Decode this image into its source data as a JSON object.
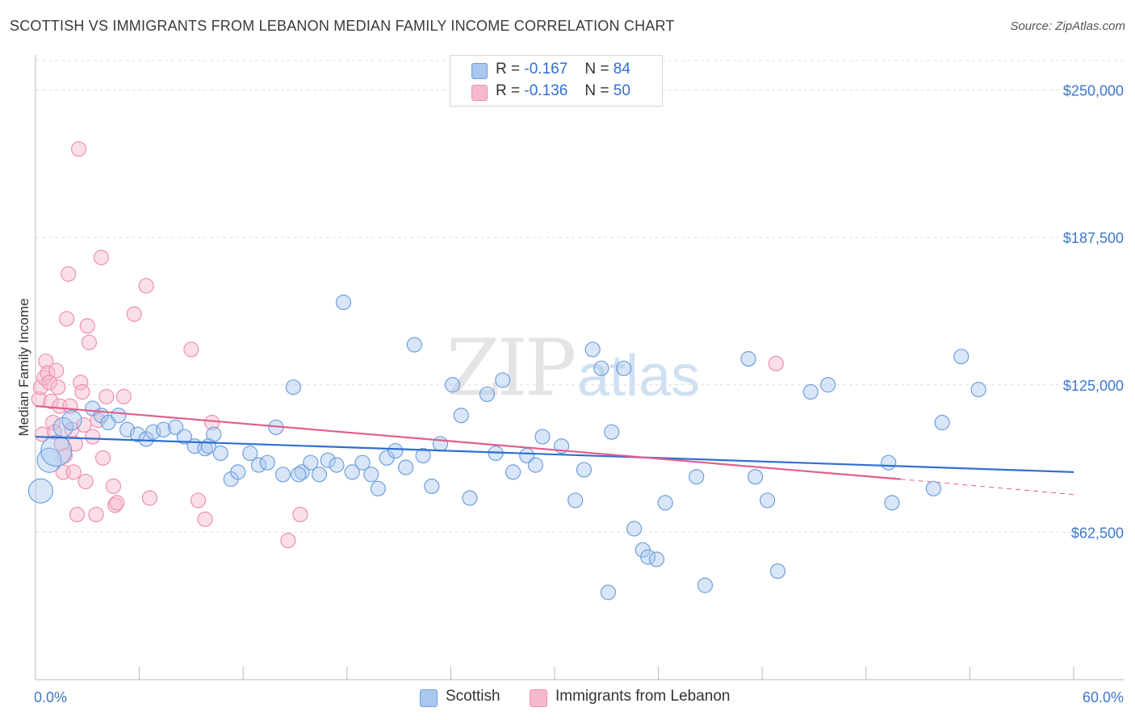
{
  "title": "SCOTTISH VS IMMIGRANTS FROM LEBANON MEDIAN FAMILY INCOME CORRELATION CHART",
  "source": "Source: ZipAtlas.com",
  "watermark": {
    "zip": "ZIP",
    "atlas": "atlas"
  },
  "colors": {
    "blue": "#2f6fd0",
    "blue_fill": "#a9c8ef",
    "blue_stroke": "#6f9fdc",
    "pink": "#e05f8a",
    "pink_fill": "#f6b9cc",
    "pink_stroke": "#ee8fae",
    "grid": "#dddddd",
    "axis_label": "#3f78c9"
  },
  "legend": {
    "r_label": "R =",
    "n_label": "N =",
    "blue_r": "-0.167",
    "blue_n": "84",
    "pink_r": "-0.136",
    "pink_n": "50"
  },
  "bottom_legend": {
    "blue": "Scottish",
    "pink": "Immigrants from Lebanon"
  },
  "chart_data": {
    "type": "scatter",
    "title": "SCOTTISH VS IMMIGRANTS FROM LEBANON MEDIAN FAMILY INCOME CORRELATION CHART",
    "xlabel": "",
    "ylabel": "Median Family Income",
    "xlim": [
      0,
      60
    ],
    "ylim": [
      0,
      262500
    ],
    "x_tick_labels": [
      "0.0%",
      "60.0%"
    ],
    "y_ticks": [
      62500,
      125000,
      187500,
      250000
    ],
    "y_tick_labels": [
      "$62,500",
      "$125,000",
      "$187,500",
      "$250,000"
    ],
    "series": [
      {
        "name": "Scottish",
        "r": -0.167,
        "n": 84,
        "trend": {
          "x": [
            0,
            60
          ],
          "y": [
            103000,
            88000
          ]
        },
        "points": [
          {
            "x": 0.3,
            "y": 80000,
            "s": 3
          },
          {
            "x": 0.8,
            "y": 93000,
            "s": 3
          },
          {
            "x": 1.2,
            "y": 97000,
            "s": 4
          },
          {
            "x": 1.6,
            "y": 107000,
            "s": 2
          },
          {
            "x": 2.1,
            "y": 110000,
            "s": 2
          },
          {
            "x": 3.3,
            "y": 115000,
            "s": 1
          },
          {
            "x": 3.8,
            "y": 112000,
            "s": 1
          },
          {
            "x": 4.2,
            "y": 109000,
            "s": 1
          },
          {
            "x": 4.8,
            "y": 112000,
            "s": 1
          },
          {
            "x": 5.3,
            "y": 106000,
            "s": 1
          },
          {
            "x": 5.9,
            "y": 104000,
            "s": 1
          },
          {
            "x": 6.4,
            "y": 102000,
            "s": 1
          },
          {
            "x": 6.8,
            "y": 105000,
            "s": 1
          },
          {
            "x": 7.4,
            "y": 106000,
            "s": 1
          },
          {
            "x": 8.1,
            "y": 107000,
            "s": 1
          },
          {
            "x": 8.6,
            "y": 103000,
            "s": 1
          },
          {
            "x": 9.2,
            "y": 99000,
            "s": 1
          },
          {
            "x": 9.8,
            "y": 98000,
            "s": 1
          },
          {
            "x": 10.3,
            "y": 104000,
            "s": 1
          },
          {
            "x": 10.7,
            "y": 96000,
            "s": 1
          },
          {
            "x": 11.3,
            "y": 85000,
            "s": 1
          },
          {
            "x": 11.7,
            "y": 88000,
            "s": 1
          },
          {
            "x": 12.4,
            "y": 96000,
            "s": 1
          },
          {
            "x": 12.9,
            "y": 91000,
            "s": 1
          },
          {
            "x": 13.4,
            "y": 92000,
            "s": 1
          },
          {
            "x": 13.9,
            "y": 107000,
            "s": 1
          },
          {
            "x": 14.3,
            "y": 87000,
            "s": 1
          },
          {
            "x": 14.9,
            "y": 124000,
            "s": 1
          },
          {
            "x": 15.4,
            "y": 88000,
            "s": 1
          },
          {
            "x": 15.9,
            "y": 92000,
            "s": 1
          },
          {
            "x": 16.4,
            "y": 87000,
            "s": 1
          },
          {
            "x": 16.9,
            "y": 93000,
            "s": 1
          },
          {
            "x": 17.4,
            "y": 91000,
            "s": 1
          },
          {
            "x": 17.8,
            "y": 160000,
            "s": 1
          },
          {
            "x": 18.3,
            "y": 88000,
            "s": 1
          },
          {
            "x": 18.9,
            "y": 92000,
            "s": 1
          },
          {
            "x": 19.4,
            "y": 87000,
            "s": 1
          },
          {
            "x": 19.8,
            "y": 81000,
            "s": 1
          },
          {
            "x": 20.3,
            "y": 94000,
            "s": 1
          },
          {
            "x": 20.8,
            "y": 97000,
            "s": 1
          },
          {
            "x": 21.4,
            "y": 90000,
            "s": 1
          },
          {
            "x": 21.9,
            "y": 142000,
            "s": 1
          },
          {
            "x": 22.4,
            "y": 95000,
            "s": 1
          },
          {
            "x": 22.9,
            "y": 82000,
            "s": 1
          },
          {
            "x": 23.4,
            "y": 100000,
            "s": 1
          },
          {
            "x": 24.1,
            "y": 125000,
            "s": 1
          },
          {
            "x": 24.6,
            "y": 112000,
            "s": 1
          },
          {
            "x": 25.1,
            "y": 77000,
            "s": 1
          },
          {
            "x": 26.1,
            "y": 121000,
            "s": 1
          },
          {
            "x": 26.6,
            "y": 96000,
            "s": 1
          },
          {
            "x": 27.0,
            "y": 127000,
            "s": 1
          },
          {
            "x": 27.6,
            "y": 88000,
            "s": 1
          },
          {
            "x": 28.4,
            "y": 95000,
            "s": 1
          },
          {
            "x": 28.9,
            "y": 91000,
            "s": 1
          },
          {
            "x": 29.3,
            "y": 103000,
            "s": 1
          },
          {
            "x": 30.4,
            "y": 99000,
            "s": 1
          },
          {
            "x": 31.2,
            "y": 76000,
            "s": 1
          },
          {
            "x": 31.7,
            "y": 89000,
            "s": 1
          },
          {
            "x": 32.2,
            "y": 140000,
            "s": 1
          },
          {
            "x": 32.7,
            "y": 132000,
            "s": 1
          },
          {
            "x": 33.1,
            "y": 37000,
            "s": 1
          },
          {
            "x": 33.3,
            "y": 105000,
            "s": 1
          },
          {
            "x": 34.0,
            "y": 132000,
            "s": 1
          },
          {
            "x": 34.6,
            "y": 64000,
            "s": 1
          },
          {
            "x": 35.1,
            "y": 55000,
            "s": 1
          },
          {
            "x": 35.4,
            "y": 52000,
            "s": 1
          },
          {
            "x": 35.9,
            "y": 51000,
            "s": 1
          },
          {
            "x": 36.4,
            "y": 75000,
            "s": 1
          },
          {
            "x": 38.2,
            "y": 86000,
            "s": 1
          },
          {
            "x": 38.7,
            "y": 40000,
            "s": 1
          },
          {
            "x": 41.2,
            "y": 136000,
            "s": 1
          },
          {
            "x": 41.6,
            "y": 86000,
            "s": 1
          },
          {
            "x": 42.3,
            "y": 76000,
            "s": 1
          },
          {
            "x": 42.9,
            "y": 46000,
            "s": 1
          },
          {
            "x": 44.8,
            "y": 122000,
            "s": 1
          },
          {
            "x": 45.8,
            "y": 125000,
            "s": 1
          },
          {
            "x": 49.3,
            "y": 92000,
            "s": 1
          },
          {
            "x": 49.5,
            "y": 75000,
            "s": 1
          },
          {
            "x": 51.9,
            "y": 81000,
            "s": 1
          },
          {
            "x": 52.4,
            "y": 109000,
            "s": 1
          },
          {
            "x": 53.5,
            "y": 137000,
            "s": 1
          },
          {
            "x": 54.5,
            "y": 123000,
            "s": 1
          },
          {
            "x": 15.2,
            "y": 87000,
            "s": 1
          },
          {
            "x": 10.0,
            "y": 99000,
            "s": 1
          }
        ]
      },
      {
        "name": "Immigrants from Lebanon",
        "r": -0.136,
        "n": 50,
        "trend": {
          "x": [
            0,
            50
          ],
          "y": [
            116000,
            85000
          ]
        },
        "trend_extension": {
          "x": [
            50,
            60
          ],
          "y": [
            85000,
            78500
          ]
        },
        "points": [
          {
            "x": 0.2,
            "y": 119000,
            "s": 1
          },
          {
            "x": 0.3,
            "y": 124000,
            "s": 1
          },
          {
            "x": 0.4,
            "y": 104000,
            "s": 1
          },
          {
            "x": 0.5,
            "y": 128000,
            "s": 1
          },
          {
            "x": 0.6,
            "y": 135000,
            "s": 1
          },
          {
            "x": 0.7,
            "y": 130000,
            "s": 1
          },
          {
            "x": 0.8,
            "y": 126000,
            "s": 1
          },
          {
            "x": 0.9,
            "y": 118000,
            "s": 1
          },
          {
            "x": 1.0,
            "y": 109000,
            "s": 1
          },
          {
            "x": 1.1,
            "y": 105000,
            "s": 1
          },
          {
            "x": 1.2,
            "y": 131000,
            "s": 1
          },
          {
            "x": 1.3,
            "y": 124000,
            "s": 1
          },
          {
            "x": 1.4,
            "y": 116000,
            "s": 1
          },
          {
            "x": 1.5,
            "y": 100000,
            "s": 1
          },
          {
            "x": 1.6,
            "y": 88000,
            "s": 1
          },
          {
            "x": 1.7,
            "y": 95000,
            "s": 1
          },
          {
            "x": 1.8,
            "y": 153000,
            "s": 1
          },
          {
            "x": 1.9,
            "y": 172000,
            "s": 1
          },
          {
            "x": 2.0,
            "y": 116000,
            "s": 1
          },
          {
            "x": 2.1,
            "y": 106000,
            "s": 1
          },
          {
            "x": 2.2,
            "y": 88000,
            "s": 1
          },
          {
            "x": 2.3,
            "y": 100000,
            "s": 1
          },
          {
            "x": 2.4,
            "y": 70000,
            "s": 1
          },
          {
            "x": 2.5,
            "y": 225000,
            "s": 1
          },
          {
            "x": 2.6,
            "y": 126000,
            "s": 1
          },
          {
            "x": 2.7,
            "y": 122000,
            "s": 1
          },
          {
            "x": 2.8,
            "y": 108000,
            "s": 1
          },
          {
            "x": 2.9,
            "y": 84000,
            "s": 1
          },
          {
            "x": 3.0,
            "y": 150000,
            "s": 1
          },
          {
            "x": 3.1,
            "y": 143000,
            "s": 1
          },
          {
            "x": 3.3,
            "y": 103000,
            "s": 1
          },
          {
            "x": 3.5,
            "y": 70000,
            "s": 1
          },
          {
            "x": 3.6,
            "y": 110000,
            "s": 1
          },
          {
            "x": 3.8,
            "y": 179000,
            "s": 1
          },
          {
            "x": 3.9,
            "y": 94000,
            "s": 1
          },
          {
            "x": 4.1,
            "y": 120000,
            "s": 1
          },
          {
            "x": 4.5,
            "y": 82000,
            "s": 1
          },
          {
            "x": 4.6,
            "y": 74000,
            "s": 1
          },
          {
            "x": 4.7,
            "y": 75000,
            "s": 1
          },
          {
            "x": 5.1,
            "y": 120000,
            "s": 1
          },
          {
            "x": 5.7,
            "y": 155000,
            "s": 1
          },
          {
            "x": 6.4,
            "y": 167000,
            "s": 1
          },
          {
            "x": 6.6,
            "y": 77000,
            "s": 1
          },
          {
            "x": 9.0,
            "y": 140000,
            "s": 1
          },
          {
            "x": 9.4,
            "y": 76000,
            "s": 1
          },
          {
            "x": 9.8,
            "y": 68000,
            "s": 1
          },
          {
            "x": 10.2,
            "y": 109000,
            "s": 1
          },
          {
            "x": 14.6,
            "y": 59000,
            "s": 1
          },
          {
            "x": 15.3,
            "y": 70000,
            "s": 1
          },
          {
            "x": 42.8,
            "y": 134000,
            "s": 1
          }
        ]
      }
    ]
  }
}
